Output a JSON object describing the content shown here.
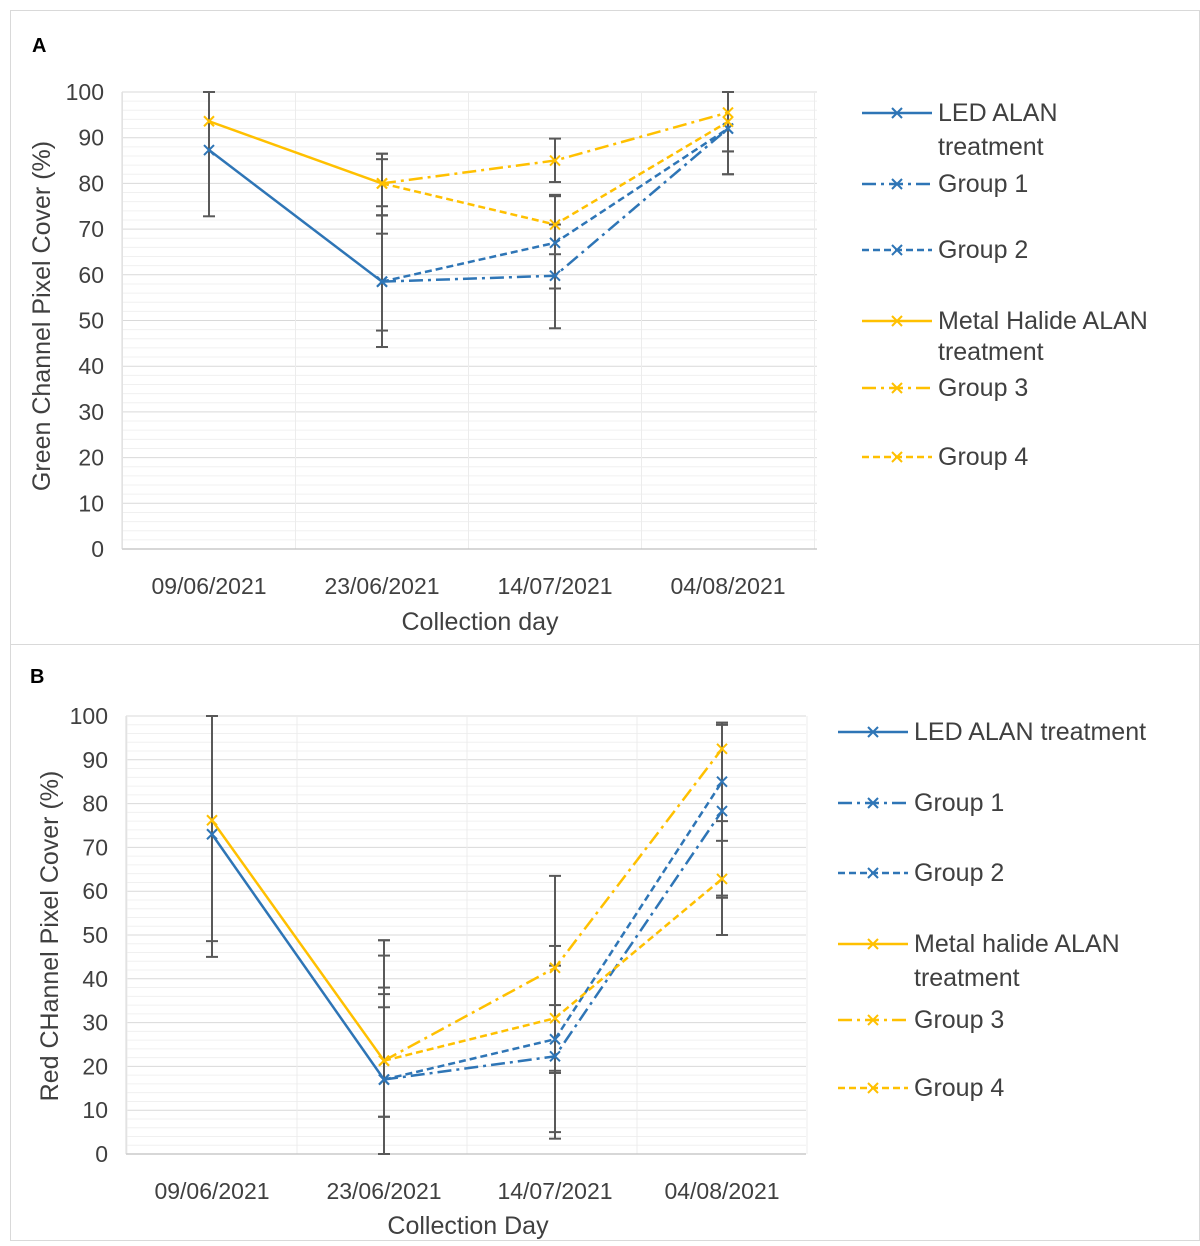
{
  "panels": [
    {
      "letter": "A"
    },
    {
      "letter": "B"
    }
  ],
  "chart_data": [
    {
      "type": "line",
      "panel": "A",
      "title": "",
      "xlabel": "Collection day",
      "ylabel": "Green Channel Pixel Cover (%)",
      "ylim": [
        0,
        100
      ],
      "yticks": [
        0,
        10,
        20,
        30,
        40,
        50,
        60,
        70,
        80,
        90,
        100
      ],
      "categories": [
        "09/06/2021",
        "23/06/2021",
        "14/07/2021",
        "04/08/2021"
      ],
      "grid": true,
      "legend_position": "right",
      "series": [
        {
          "name": "LED ALAN treatment",
          "color": "#2E75B6",
          "dash": "solid",
          "values": [
            87.3,
            58.5,
            null,
            null
          ],
          "error_low": [
            72.8,
            44.2,
            null,
            null
          ],
          "error_high": [
            100,
            73.0,
            null,
            null
          ]
        },
        {
          "name": "Group 1",
          "color": "#2E75B6",
          "dash": "dashdot",
          "values": [
            null,
            58.5,
            59.8,
            92.0
          ],
          "error_low": [
            null,
            47.8,
            48.3,
            82.0
          ],
          "error_high": [
            null,
            69.0,
            71.0,
            100
          ]
        },
        {
          "name": "Group 2",
          "color": "#2E75B6",
          "dash": "dash",
          "values": [
            null,
            58.5,
            67.0,
            92.0
          ],
          "error_low": [
            null,
            44.2,
            57.0,
            82.0
          ],
          "error_high": [
            null,
            73.0,
            77.2,
            100
          ]
        },
        {
          "name": "Metal Halide ALAN treatment",
          "color": "#FFC000",
          "dash": "solid",
          "values": [
            93.6,
            80.0,
            null,
            null
          ],
          "error_low": [
            null,
            73.0,
            null,
            null
          ],
          "error_high": [
            100,
            86.5,
            null,
            null
          ]
        },
        {
          "name": "Group 3",
          "color": "#FFC000",
          "dash": "dashdot",
          "values": [
            null,
            80.0,
            85.0,
            95.5
          ],
          "error_low": [
            null,
            75.0,
            80.3,
            87.0
          ],
          "error_high": [
            null,
            85.3,
            89.8,
            100
          ]
        },
        {
          "name": "Group 4",
          "color": "#FFC000",
          "dash": "dash",
          "values": [
            null,
            80.0,
            71.0,
            93.5
          ],
          "error_low": [
            null,
            73.0,
            64.5,
            87.0
          ],
          "error_high": [
            null,
            86.5,
            77.5,
            100
          ]
        }
      ]
    },
    {
      "type": "line",
      "panel": "B",
      "title": "",
      "xlabel": "Collection Day",
      "ylabel": "Red CHannel Pixel  Cover (%)",
      "ylim": [
        0,
        100
      ],
      "yticks": [
        0,
        10,
        20,
        30,
        40,
        50,
        60,
        70,
        80,
        90,
        100
      ],
      "categories": [
        "09/06/2021",
        "23/06/2021",
        "14/07/2021",
        "04/08/2021"
      ],
      "grid": true,
      "legend_position": "right",
      "series": [
        {
          "name": "LED ALAN treatment",
          "color": "#2E75B6",
          "dash": "solid",
          "values": [
            73.0,
            17.0,
            null,
            null
          ],
          "error_low": [
            45.0,
            0,
            null,
            null
          ],
          "error_high": [
            100,
            38.0,
            null,
            null
          ]
        },
        {
          "name": "Group 1",
          "color": "#2E75B6",
          "dash": "dashdot",
          "values": [
            null,
            17.0,
            22.3,
            78.3
          ],
          "error_low": [
            null,
            0,
            5.0,
            58.5
          ],
          "error_high": [
            null,
            33.5,
            47.5,
            98.0
          ]
        },
        {
          "name": "Group 2",
          "color": "#2E75B6",
          "dash": "dash",
          "values": [
            null,
            17.0,
            26.2,
            85.0
          ],
          "error_low": [
            null,
            0,
            18.5,
            71.5
          ],
          "error_high": [
            null,
            36.5,
            34.0,
            98.5
          ]
        },
        {
          "name": "Metal halide ALAN treatment",
          "color": "#FFC000",
          "dash": "solid",
          "values": [
            76.2,
            21.3,
            null,
            null
          ],
          "error_low": [
            48.6,
            8.5,
            null,
            null
          ],
          "error_high": [
            100,
            48.8,
            null,
            null
          ]
        },
        {
          "name": "Group 3",
          "color": "#FFC000",
          "dash": "dashdot",
          "values": [
            null,
            21.3,
            42.5,
            92.5
          ],
          "error_low": [
            null,
            0,
            3.5,
            59.0
          ],
          "error_high": [
            null,
            45.3,
            63.5,
            98.0
          ]
        },
        {
          "name": "Group 4",
          "color": "#FFC000",
          "dash": "dash",
          "values": [
            null,
            21.3,
            31.0,
            62.8
          ],
          "error_low": [
            null,
            8.5,
            19.0,
            50.0
          ],
          "error_high": [
            null,
            48.8,
            43.0,
            76.0
          ]
        }
      ]
    }
  ]
}
